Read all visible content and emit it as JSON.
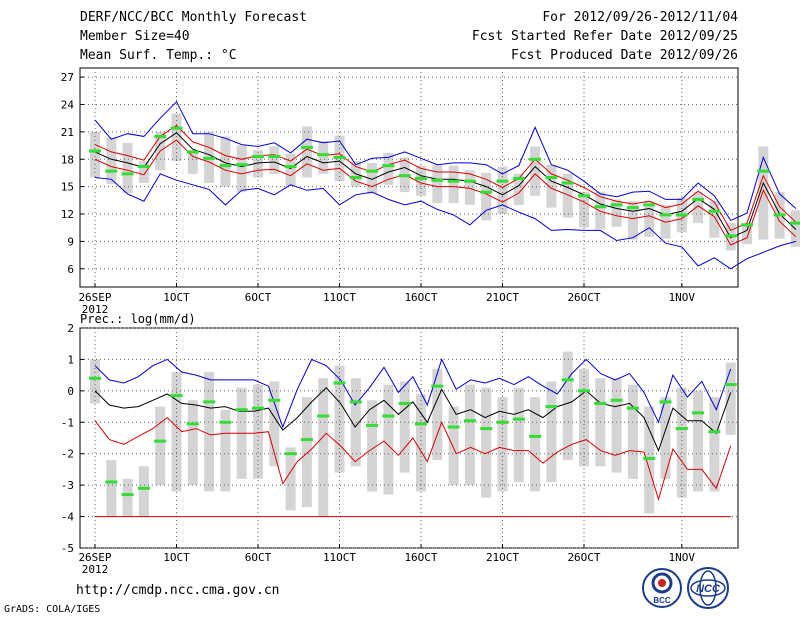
{
  "header": {
    "title": "DERF/NCC/BCC Monthly Forecast",
    "member_size": "Member Size=40",
    "variable": "Mean Surf. Temp.: °C",
    "forecast_period": "For 2012/09/26-2012/11/04",
    "started_refer": "Fcst Started Refer Date 2012/09/25",
    "produced": "Fcst Produced Date 2012/09/26"
  },
  "footer": {
    "url": "http://cmdp.ncc.cma.gov.cn",
    "credit": "GrADS: COLA/IGES",
    "logo_bcc": "BCC",
    "logo_ncc": "NCC"
  },
  "colors": {
    "spread": "#d4d4d4",
    "mean": "#000000",
    "upper": "#0000dd",
    "lower": "#dd0000",
    "green": "#33dd33",
    "grid": "#666666"
  },
  "chart_data": [
    {
      "type": "line",
      "title": "Mean Surf. Temp.: °C",
      "x_tick_labels": [
        "26SEP",
        "1OCT",
        "6OCT",
        "11OCT",
        "16OCT",
        "21OCT",
        "26OCT",
        "1NOV"
      ],
      "x_tick_days": [
        0,
        5,
        10,
        15,
        20,
        25,
        30,
        36
      ],
      "x_year_label": "2012",
      "days": 40,
      "ylim": [
        4,
        28
      ],
      "yticks": [
        6,
        9,
        12,
        15,
        18,
        21,
        24,
        27
      ],
      "series": [
        {
          "name": "ensemble-mean",
          "values": [
            18.8,
            18.0,
            17.6,
            17.1,
            19.7,
            20.9,
            19.1,
            18.5,
            17.6,
            17.2,
            17.6,
            17.7,
            17.0,
            18.3,
            17.6,
            17.8,
            16.4,
            15.8,
            16.6,
            17.1,
            16.2,
            15.8,
            15.8,
            15.6,
            15.0,
            14.1,
            15.1,
            17.2,
            15.6,
            14.9,
            14.1,
            13.1,
            12.6,
            12.3,
            12.6,
            11.9,
            12.3,
            13.7,
            12.5,
            9.4,
            10.2,
            15.4,
            12.0,
            10.3
          ]
        },
        {
          "name": "upper-bound",
          "values": [
            22.3,
            20.2,
            20.8,
            20.5,
            22.5,
            24.3,
            20.8,
            20.8,
            20.3,
            19.6,
            19.4,
            19.8,
            18.7,
            20.2,
            19.8,
            20.0,
            17.4,
            18.1,
            18.2,
            18.8,
            18.1,
            17.4,
            17.6,
            17.6,
            17.4,
            16.4,
            17.3,
            21.5,
            17.4,
            16.8,
            15.6,
            14.2,
            13.9,
            14.4,
            14.5,
            13.6,
            13.6,
            15.4,
            14.0,
            11.3,
            12.1,
            18.2,
            14.2,
            12.6
          ]
        },
        {
          "name": "lower-bound",
          "values": [
            16.0,
            15.8,
            14.2,
            13.4,
            16.4,
            15.7,
            15.2,
            14.7,
            13.0,
            14.6,
            14.8,
            14.1,
            15.2,
            14.6,
            14.8,
            13.0,
            14.1,
            14.4,
            13.6,
            13.0,
            13.4,
            12.5,
            11.9,
            10.8,
            12.4,
            13.0,
            12.2,
            11.5,
            10.2,
            10.3,
            10.2,
            10.2,
            9.1,
            9.4,
            10.5,
            8.8,
            8.4,
            6.3,
            7.2,
            6.0,
            7.1,
            7.8,
            8.5,
            9.0
          ]
        },
        {
          "name": "mean-plus-sd",
          "values": [
            19.6,
            18.8,
            18.4,
            17.9,
            20.5,
            21.7,
            19.9,
            19.3,
            18.4,
            18.0,
            18.4,
            18.5,
            17.8,
            19.1,
            18.4,
            18.6,
            17.2,
            16.6,
            17.4,
            17.9,
            17.0,
            16.6,
            16.6,
            16.4,
            15.8,
            14.9,
            15.9,
            18.0,
            16.4,
            15.7,
            14.9,
            13.9,
            13.4,
            13.1,
            13.4,
            12.7,
            13.1,
            14.5,
            13.3,
            10.2,
            11.0,
            16.2,
            12.8,
            11.1
          ]
        },
        {
          "name": "mean-minus-sd",
          "values": [
            18.0,
            17.2,
            16.8,
            16.3,
            18.9,
            20.1,
            18.3,
            17.7,
            16.8,
            16.4,
            16.8,
            16.9,
            16.2,
            17.5,
            16.8,
            17.0,
            15.6,
            15.0,
            15.8,
            16.3,
            15.4,
            15.0,
            15.0,
            14.8,
            14.2,
            13.3,
            14.3,
            16.4,
            14.8,
            14.1,
            13.3,
            12.3,
            11.8,
            11.5,
            11.8,
            11.1,
            11.5,
            12.9,
            11.7,
            8.6,
            9.4,
            14.6,
            11.2,
            9.5
          ]
        },
        {
          "name": "observed-marker",
          "values": [
            18.9,
            16.7,
            16.4,
            17.2,
            20.5,
            21.4,
            18.8,
            18.1,
            17.3,
            17.4,
            18.3,
            18.3,
            17.2,
            19.3,
            18.5,
            18.2,
            16.0,
            16.7,
            17.3,
            16.2,
            15.9,
            15.7,
            15.6,
            15.6,
            14.4,
            15.6,
            15.9,
            18.0,
            16.0,
            15.4,
            14.0,
            12.8,
            13.0,
            12.7,
            13.0,
            11.9,
            11.9,
            13.6,
            12.3,
            9.6,
            10.8,
            16.7,
            11.9,
            11.0
          ]
        },
        {
          "name": "spread-top",
          "values": [
            21.0,
            20.4,
            19.8,
            17.8,
            21.0,
            23.0,
            19.0,
            21.0,
            20.5,
            19.5,
            19.0,
            19.4,
            18.6,
            21.6,
            20.0,
            20.6,
            17.8,
            17.6,
            18.7,
            18.2,
            17.3,
            17.4,
            17.3,
            16.8,
            16.5,
            17.2,
            16.4,
            19.4,
            17.4,
            16.4,
            14.4,
            14.4,
            13.6,
            13.4,
            13.4,
            13.0,
            13.8,
            14.4,
            13.4,
            11.0,
            11.0,
            19.4,
            14.4,
            12.4
          ]
        },
        {
          "name": "spread-bottom",
          "values": [
            16.0,
            15.3,
            14.3,
            15.4,
            16.8,
            17.8,
            16.4,
            15.4,
            15.0,
            14.4,
            16.0,
            16.4,
            15.1,
            16.0,
            16.4,
            15.6,
            15.0,
            14.2,
            15.2,
            14.4,
            14.0,
            13.2,
            13.2,
            13.0,
            11.3,
            12.0,
            13.0,
            14.0,
            12.7,
            11.6,
            10.5,
            10.3,
            10.6,
            9.2,
            9.5,
            9.3,
            10.0,
            11.0,
            9.4,
            8.0,
            8.7,
            9.2,
            9.3,
            8.4
          ]
        }
      ]
    },
    {
      "type": "line",
      "title": "Prec.: log(mm/d)",
      "x_tick_labels": [
        "26SEP",
        "1OCT",
        "6OCT",
        "11OCT",
        "16OCT",
        "21OCT",
        "26OCT",
        "1NOV"
      ],
      "x_tick_days": [
        0,
        5,
        10,
        15,
        20,
        25,
        30,
        36
      ],
      "x_year_label": "2012",
      "days": 40,
      "ylim": [
        -5,
        2
      ],
      "yticks": [
        -5,
        -4,
        -3,
        -2,
        -1,
        0,
        1,
        2
      ],
      "series": [
        {
          "name": "ensemble-mean",
          "values": [
            0.0,
            -0.45,
            -0.55,
            -0.5,
            -0.3,
            -0.1,
            -0.4,
            -0.45,
            -0.55,
            -0.5,
            -0.65,
            -0.65,
            -0.55,
            -1.25,
            -0.85,
            -0.35,
            0.1,
            -0.4,
            -1.15,
            -0.6,
            -0.3,
            -0.75,
            -0.35,
            -1.0,
            0.05,
            -0.75,
            -0.6,
            -0.85,
            -0.65,
            -0.75,
            -0.6,
            -0.85,
            -0.5,
            -0.35,
            0.0,
            -0.4,
            -0.5,
            -0.4,
            -0.85,
            -1.9,
            -0.55,
            -0.95,
            -0.95,
            -1.35,
            -0.05
          ]
        },
        {
          "name": "upper-bound",
          "values": [
            0.8,
            0.35,
            0.25,
            0.45,
            0.8,
            1.0,
            0.6,
            0.5,
            0.35,
            0.35,
            0.35,
            0.35,
            0.15,
            -1.15,
            0.05,
            1.0,
            0.8,
            0.35,
            -0.45,
            0.1,
            0.75,
            -0.05,
            0.45,
            -0.45,
            1.0,
            0.05,
            0.35,
            0.25,
            0.4,
            0.2,
            0.45,
            0.15,
            -0.1,
            0.55,
            1.0,
            0.55,
            0.35,
            0.55,
            -0.05,
            -1.0,
            0.5,
            -0.2,
            0.3,
            -0.6,
            0.7
          ]
        },
        {
          "name": "lower-bound",
          "values": [
            -0.95,
            -1.55,
            -1.7,
            -1.45,
            -1.2,
            -0.85,
            -1.3,
            -1.2,
            -1.4,
            -1.35,
            -1.35,
            -1.35,
            -1.3,
            -2.95,
            -2.25,
            -1.85,
            -1.35,
            -1.75,
            -2.25,
            -1.9,
            -1.6,
            -2.05,
            -1.5,
            -2.25,
            -1.0,
            -2.0,
            -1.8,
            -2.0,
            -1.8,
            -1.9,
            -1.9,
            -2.3,
            -1.95,
            -1.7,
            -1.55,
            -1.9,
            -2.05,
            -1.9,
            -1.95,
            -3.45,
            -1.85,
            -2.5,
            -2.5,
            -3.1,
            -1.75
          ]
        },
        {
          "name": "lower-floor",
          "values": [
            -4.0,
            -4.0,
            -4.0,
            -4.0,
            -4.0,
            -4.0,
            -4.0,
            -4.0,
            -4.0,
            -4.0,
            -4.0,
            -4.0,
            -4.0,
            -4.0,
            -4.0,
            -4.0,
            -4.0,
            -4.0,
            -4.0,
            -4.0,
            -4.0,
            -4.0,
            -4.0,
            -4.0,
            -4.0,
            -4.0,
            -4.0,
            -4.0,
            -4.0,
            -4.0,
            -4.0,
            -4.0,
            -4.0,
            -4.0,
            -4.0,
            -4.0,
            -4.0,
            -4.0,
            -4.0,
            -4.0,
            -4.0,
            -4.0,
            -4.0,
            -4.0,
            -4.0
          ]
        },
        {
          "name": "observed-marker",
          "values": [
            0.4,
            -2.9,
            -3.3,
            -3.1,
            -1.6,
            -0.15,
            -1.05,
            -0.35,
            -1.0,
            -0.6,
            -0.55,
            -0.3,
            -2.0,
            -1.55,
            -0.8,
            0.25,
            -0.35,
            -1.1,
            -0.8,
            -0.4,
            -1.05,
            0.15,
            -1.15,
            -0.95,
            -1.2,
            -1.0,
            -0.9,
            -1.45,
            -0.5,
            0.35,
            0.0,
            -0.4,
            -0.3,
            -0.55,
            -2.15,
            -0.35,
            -1.2,
            -0.7,
            -1.3,
            0.2
          ]
        },
        {
          "name": "spread-top",
          "values": [
            1.0,
            -2.2,
            -2.8,
            -2.4,
            -0.5,
            0.6,
            -0.3,
            0.6,
            -0.6,
            0.1,
            0.2,
            0.3,
            -1.8,
            -0.2,
            0.4,
            0.8,
            0.4,
            -0.3,
            0.2,
            0.3,
            -0.1,
            0.7,
            -0.5,
            0.2,
            0.1,
            -0.2,
            0.1,
            -0.2,
            0.3,
            1.25,
            0.7,
            0.4,
            0.4,
            0.2,
            -0.5,
            -0.2,
            0.1,
            0.0,
            -0.2,
            0.9
          ]
        },
        {
          "name": "spread-bottom",
          "values": [
            -0.4,
            -4.0,
            -4.0,
            -4.0,
            -3.0,
            -3.2,
            -3.0,
            -3.2,
            -3.2,
            -2.8,
            -2.8,
            -2.4,
            -3.8,
            -3.7,
            -4.0,
            -2.6,
            -2.4,
            -3.2,
            -3.3,
            -2.6,
            -3.2,
            -2.2,
            -3.0,
            -3.0,
            -3.4,
            -3.2,
            -2.9,
            -3.2,
            -2.9,
            -2.2,
            -2.4,
            -2.4,
            -2.6,
            -2.8,
            -3.9,
            -2.8,
            -3.4,
            -3.2,
            -3.2,
            -1.4
          ]
        }
      ]
    }
  ]
}
